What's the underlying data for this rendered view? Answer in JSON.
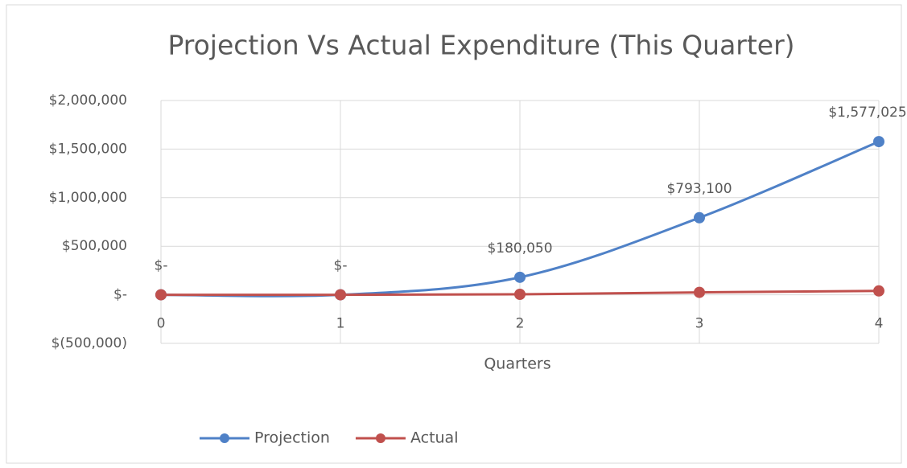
{
  "chart_data": {
    "type": "line",
    "smooth": true,
    "title": "Projection Vs Actual Expenditure (This Quarter)",
    "x_label": "Quarters",
    "x": [
      0,
      1,
      2,
      3,
      4
    ],
    "xlim": [
      0,
      4
    ],
    "xticks": [
      0,
      1,
      2,
      3,
      4
    ],
    "ylim": [
      -500000,
      2000000
    ],
    "yticks": [
      {
        "value": -500000,
        "label": "$(500,000)"
      },
      {
        "value": 0,
        "label": "$-"
      },
      {
        "value": 500000,
        "label": "$500,000"
      },
      {
        "value": 1000000,
        "label": "$1,000,000"
      },
      {
        "value": 1500000,
        "label": "$1,500,000"
      },
      {
        "value": 2000000,
        "label": "$2,000,000"
      }
    ],
    "grid": true,
    "legend": "bottom",
    "series": [
      {
        "name": "Projection",
        "color": "#4f81c7",
        "values": [
          0,
          0,
          180050,
          793100,
          1577025
        ],
        "value_labels": [
          "$-",
          "$-",
          "$180,050",
          "$793,100",
          "$1,577,025"
        ]
      },
      {
        "name": "Actual",
        "color": "#c0504d",
        "values": [
          0,
          0,
          5000,
          25000,
          40000
        ]
      }
    ]
  }
}
